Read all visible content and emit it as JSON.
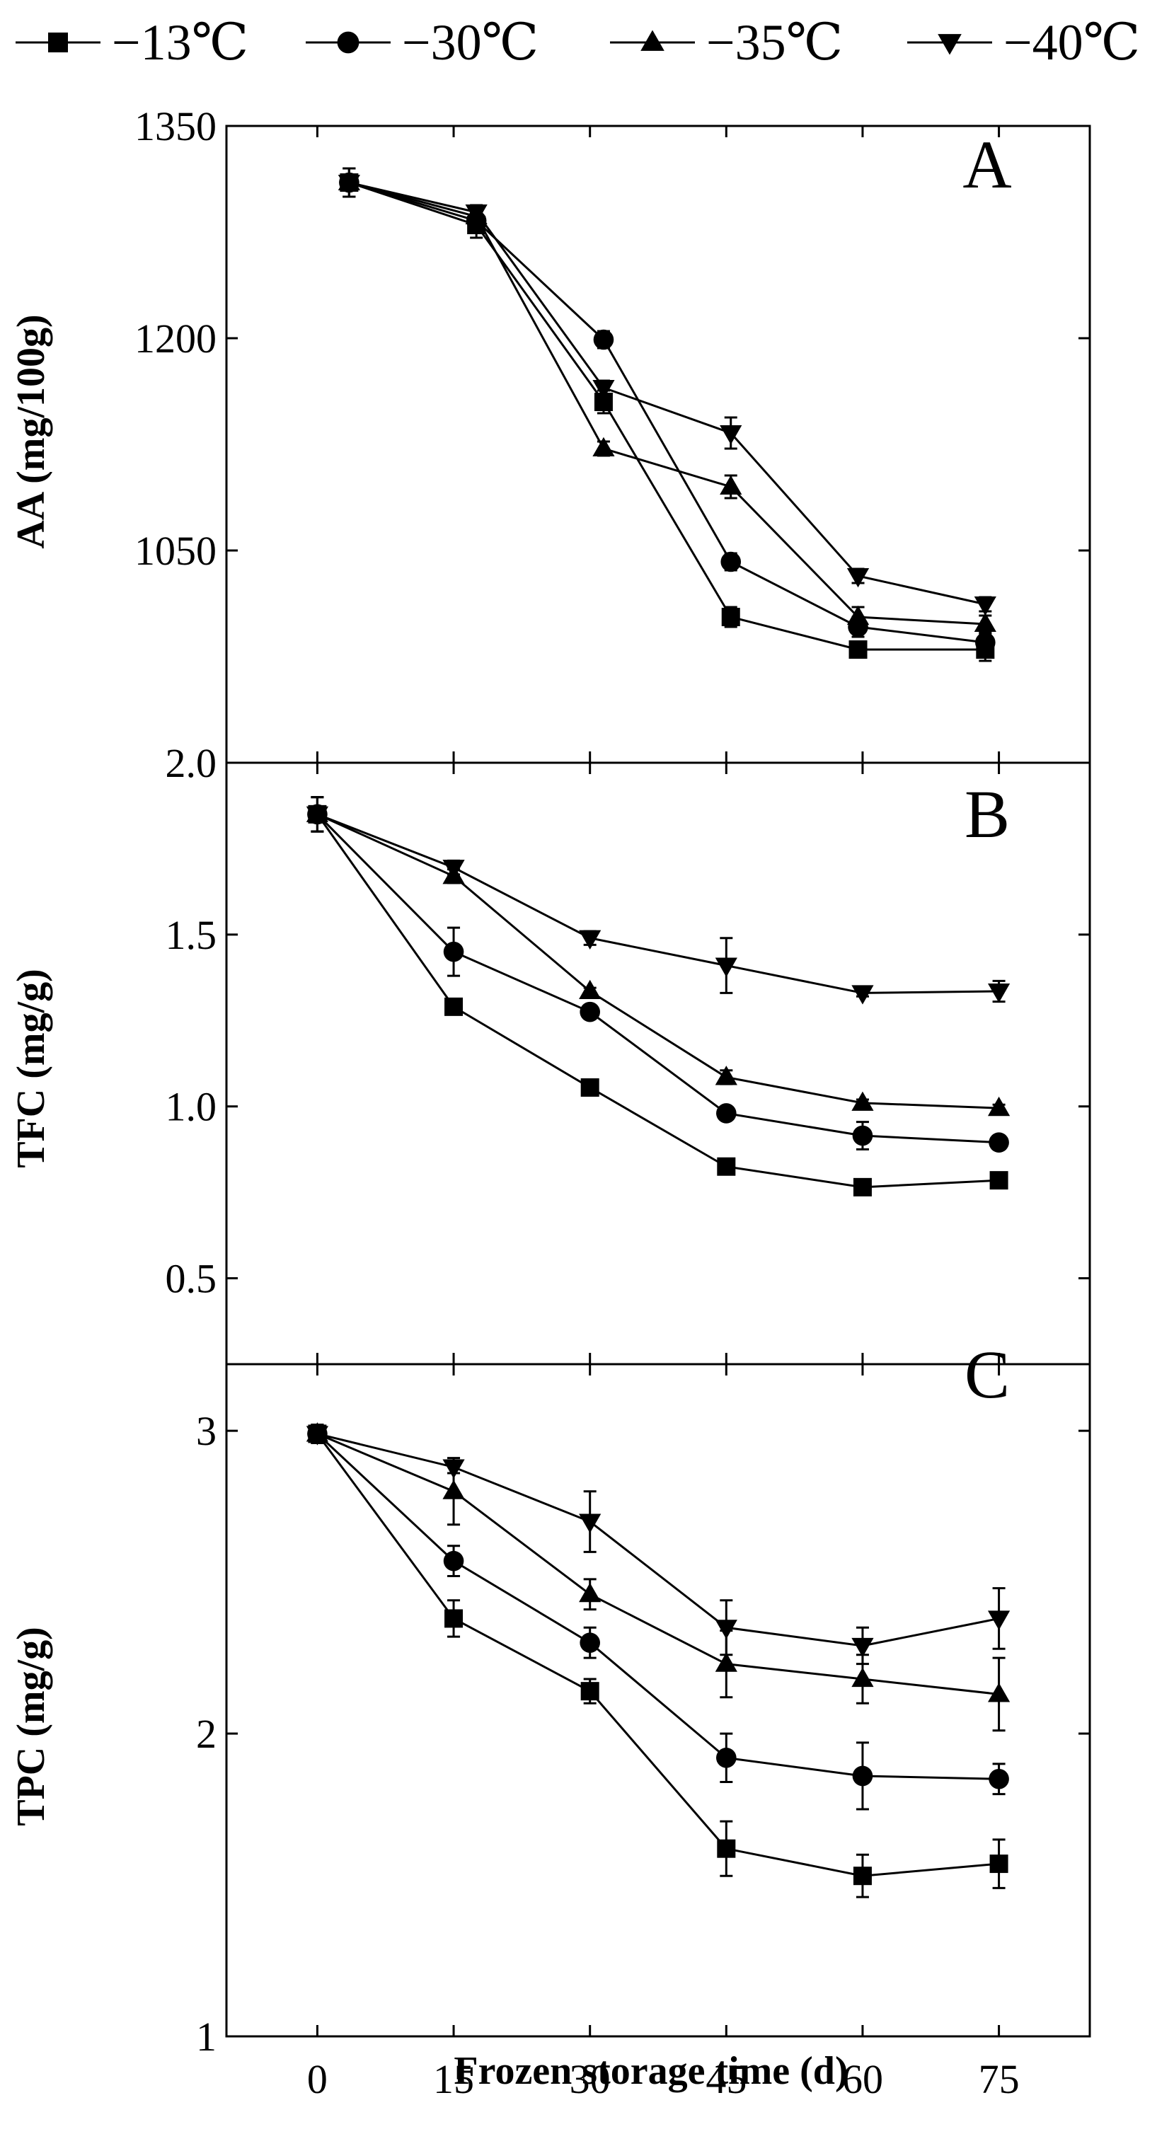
{
  "chart_data": {
    "type": "line",
    "layout": "three vertically stacked panels sharing one x axis",
    "xlabel": "Frozen storage time (d)",
    "x_ticks": [
      "0",
      "15",
      "30",
      "45",
      "60",
      "75"
    ],
    "xlim": [
      -10,
      85
    ],
    "legend": {
      "placement": "top",
      "entries": [
        {
          "series": "s13",
          "label": "−13℃",
          "marker": "square"
        },
        {
          "series": "s30",
          "label": "−30℃",
          "marker": "circle"
        },
        {
          "series": "s35",
          "label": "−35℃",
          "marker": "triangle-up"
        },
        {
          "series": "s40",
          "label": "−40℃",
          "marker": "triangle-down"
        }
      ]
    },
    "panels": [
      {
        "id": "A",
        "letter": "A",
        "ylabel": "AA (mg/100g)",
        "ylim": [
          900,
          1350
        ],
        "y_ticks": [
          "1050",
          "1200",
          "1350"
        ],
        "y_tick_values": [
          1050,
          1200,
          1350
        ],
        "extra_tick_label": "2.0",
        "series": [
          {
            "key": "s13",
            "name": "−13℃",
            "marker": "square",
            "x": [
              3.5,
              17.5,
              31.5,
              45.5,
              59.5,
              73.5
            ],
            "y": [
              1310,
              1280,
              1155,
              1003,
              980,
              980
            ],
            "err": [
              10,
              9,
              8,
              7,
              5,
              8
            ]
          },
          {
            "key": "s30",
            "name": "−30℃",
            "marker": "circle",
            "x": [
              3.5,
              17.5,
              31.5,
              45.5,
              59.5,
              73.5
            ],
            "y": [
              1310,
              1283,
              1199,
              1042,
              996,
              985
            ],
            "err": [
              10,
              6,
              6,
              6,
              7,
              6
            ]
          },
          {
            "key": "s35",
            "name": "−35℃",
            "marker": "triangle-up",
            "x": [
              3.5,
              17.5,
              31.5,
              45.5,
              59.5,
              73.5
            ],
            "y": [
              1310,
              1286,
              1122,
              1095,
              1003,
              998
            ],
            "err": [
              10,
              5,
              5,
              8,
              7,
              6
            ]
          },
          {
            "key": "s40",
            "name": "−40℃",
            "marker": "triangle-down",
            "x": [
              3.5,
              17.5,
              31.5,
              45.5,
              59.5,
              73.5
            ],
            "y": [
              1310,
              1289,
              1165,
              1133,
              1032,
              1012
            ],
            "err": [
              10,
              5,
              5,
              11,
              5,
              5
            ]
          }
        ]
      },
      {
        "id": "B",
        "letter": "B",
        "ylabel": "TFC (mg/g)",
        "ylim": [
          0.25,
          2.0
        ],
        "y_ticks": [
          "0.5",
          "1.0",
          "1.5"
        ],
        "y_tick_values": [
          0.5,
          1.0,
          1.5
        ],
        "series": [
          {
            "key": "s13",
            "name": "−13℃",
            "marker": "square",
            "x": [
              0,
              15,
              30,
              45,
              60,
              75
            ],
            "y": [
              1.85,
              1.29,
              1.055,
              0.825,
              0.765,
              0.785
            ],
            "err": [
              0.05,
              0.01,
              0.01,
              0.01,
              0.01,
              0.02
            ]
          },
          {
            "key": "s30",
            "name": "−30℃",
            "marker": "circle",
            "x": [
              0,
              15,
              30,
              45,
              60,
              75
            ],
            "y": [
              1.85,
              1.45,
              1.275,
              0.98,
              0.915,
              0.895
            ],
            "err": [
              0.05,
              0.07,
              0.02,
              0.01,
              0.04,
              0.01
            ]
          },
          {
            "key": "s35",
            "name": "−35℃",
            "marker": "triangle-up",
            "x": [
              0,
              15,
              30,
              45,
              60,
              75
            ],
            "y": [
              1.85,
              1.67,
              1.335,
              1.085,
              1.01,
              0.995
            ],
            "err": [
              0.05,
              0.02,
              0.01,
              0.02,
              0.01,
              0.01
            ]
          },
          {
            "key": "s40",
            "name": "−40℃",
            "marker": "triangle-down",
            "x": [
              0,
              15,
              30,
              45,
              60,
              75
            ],
            "y": [
              1.85,
              1.695,
              1.49,
              1.41,
              1.33,
              1.335
            ],
            "err": [
              0.05,
              0.02,
              0.02,
              0.08,
              0.01,
              0.03
            ]
          }
        ]
      },
      {
        "id": "C",
        "letter": "C",
        "ylabel": "TPC (mg/g)",
        "ylim": [
          1.0,
          3.22
        ],
        "y_ticks": [
          "1",
          "2",
          "3"
        ],
        "y_tick_values": [
          1,
          2,
          3
        ],
        "series": [
          {
            "key": "s13",
            "name": "−13℃",
            "marker": "square",
            "x": [
              0,
              15,
              30,
              45,
              60,
              75
            ],
            "y": [
              2.99,
              2.38,
              2.14,
              1.62,
              1.53,
              1.57
            ],
            "err": [
              0.03,
              0.06,
              0.04,
              0.09,
              0.07,
              0.08
            ]
          },
          {
            "key": "s30",
            "name": "−30℃",
            "marker": "circle",
            "x": [
              0,
              15,
              30,
              45,
              60,
              75
            ],
            "y": [
              2.99,
              2.57,
              2.3,
              1.92,
              1.86,
              1.85
            ],
            "err": [
              0.03,
              0.05,
              0.05,
              0.08,
              0.11,
              0.05
            ]
          },
          {
            "key": "s35",
            "name": "−35℃",
            "marker": "triangle-up",
            "x": [
              0,
              15,
              30,
              45,
              60,
              75
            ],
            "y": [
              2.99,
              2.8,
              2.46,
              2.23,
              2.18,
              2.13
            ],
            "err": [
              0.03,
              0.11,
              0.05,
              0.11,
              0.08,
              0.12
            ]
          },
          {
            "key": "s40",
            "name": "−40℃",
            "marker": "triangle-down",
            "x": [
              0,
              15,
              30,
              45,
              60,
              75
            ],
            "y": [
              2.99,
              2.88,
              2.7,
              2.35,
              2.29,
              2.38
            ],
            "err": [
              0.03,
              0.02,
              0.1,
              0.09,
              0.06,
              0.1
            ]
          }
        ]
      }
    ]
  }
}
